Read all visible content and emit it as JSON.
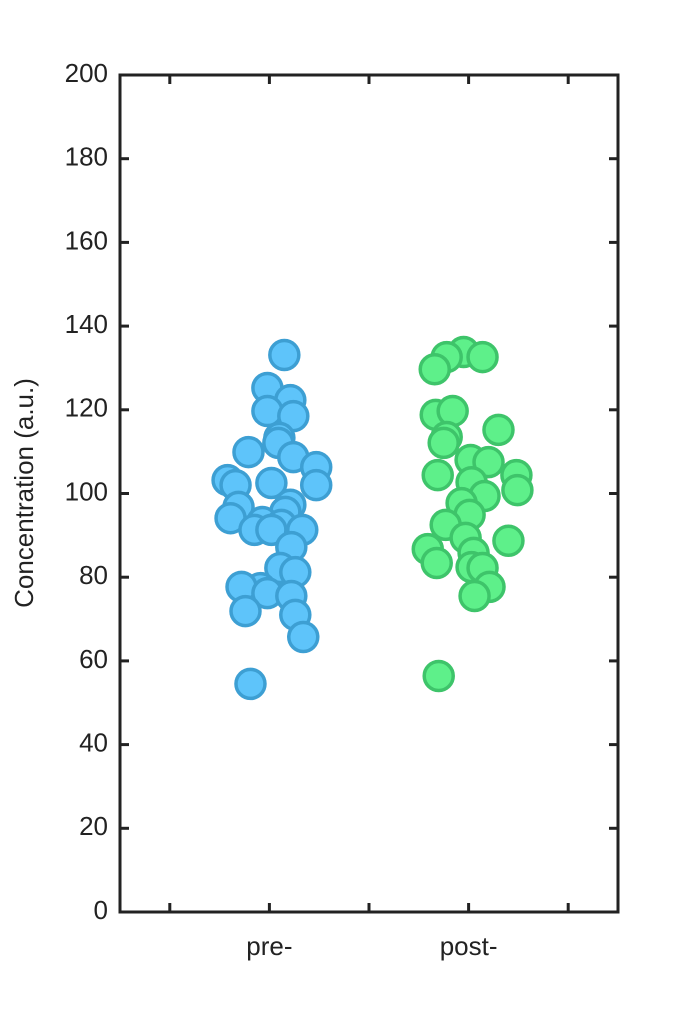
{
  "chart_data": {
    "type": "scatter",
    "ylabel": "Concentration (a.u.)",
    "xlim": [
      0,
      5
    ],
    "xticks": [
      {
        "value": 1.5,
        "label": "pre-"
      },
      {
        "value": 3.5,
        "label": "post-"
      }
    ],
    "minor_xticks": [
      0.5,
      2.5,
      4.5
    ],
    "ylim": [
      0,
      200
    ],
    "yticks": [
      0,
      20,
      40,
      60,
      80,
      100,
      120,
      140,
      160,
      180,
      200
    ],
    "series": [
      {
        "color": "#5ec4fa",
        "edge_color": "#3d9fd3",
        "x": [
          1.65,
          1.48,
          1.71,
          1.48,
          1.74,
          1.6,
          1.29,
          1.59,
          1.74,
          1.97,
          1.08,
          1.16,
          1.52,
          1.97,
          1.71,
          1.19,
          1.11,
          1.66,
          1.43,
          1.35,
          1.62,
          1.83,
          1.52,
          1.72,
          1.61,
          1.76,
          1.41,
          1.22,
          1.48,
          1.72,
          1.76,
          1.26,
          1.84,
          1.31
        ],
        "values": [
          133.1,
          125.2,
          122.3,
          119.7,
          118.5,
          113.3,
          109.9,
          112.1,
          108.7,
          106.3,
          103.2,
          102.0,
          102.5,
          102.0,
          97.3,
          96.8,
          94.1,
          95.6,
          93.2,
          91.3,
          92.5,
          91.3,
          91.3,
          87.2,
          82.2,
          81.2,
          77.4,
          77.7,
          76.2,
          75.5,
          71.0,
          71.9,
          65.7,
          54.5
        ]
      },
      {
        "color": "#5ef08a",
        "edge_color": "#3ec46a",
        "x": [
          3.45,
          3.28,
          3.64,
          3.16,
          3.17,
          3.34,
          3.8,
          3.28,
          3.25,
          3.52,
          3.7,
          3.19,
          3.98,
          3.53,
          3.99,
          3.66,
          3.43,
          3.51,
          3.27,
          3.47,
          3.9,
          3.09,
          3.18,
          3.55,
          3.53,
          3.64,
          3.71,
          3.56,
          3.2
        ],
        "values": [
          133.8,
          132.6,
          132.6,
          129.7,
          118.8,
          119.7,
          115.2,
          113.5,
          112.1,
          108.0,
          107.5,
          104.4,
          104.4,
          102.7,
          100.8,
          99.4,
          97.7,
          94.9,
          92.5,
          89.4,
          88.7,
          86.7,
          83.4,
          85.8,
          82.4,
          82.2,
          77.7,
          75.5,
          56.4
        ]
      }
    ]
  }
}
